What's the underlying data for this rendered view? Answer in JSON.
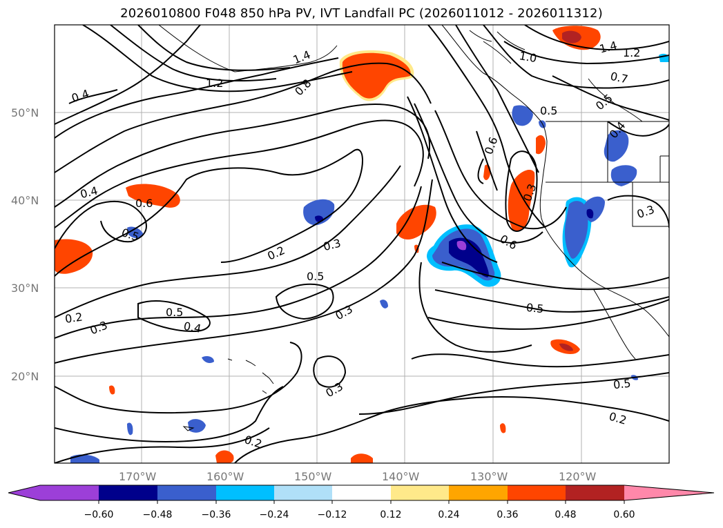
{
  "title": "2026010800 F048 850 hPa PV, IVT Landfall PC (2026011012 - 2026011312)",
  "lat_labels": [
    "50°N",
    "40°N",
    "30°N",
    "20°N"
  ],
  "lon_labels": [
    "170°W",
    "160°W",
    "150°W",
    "140°W",
    "130°W",
    "120°W"
  ],
  "contour_labels": [
    "0.4",
    "1.4",
    "1.2",
    "0.8",
    "1.0",
    "1.4",
    "1.2",
    "0.7",
    "0.5",
    "0.5",
    "0.6",
    "0.4",
    "0.4",
    "0.6",
    "0.5",
    "0.3",
    "0.3",
    "0.2",
    "0.3",
    "0.5",
    "0.6",
    "0.2",
    "0.5",
    "0.3",
    "0.5",
    "0.4",
    "0.3",
    "0.5",
    "0.3",
    "0.2",
    "0.2"
  ],
  "colorbar": {
    "ticks": [
      "−0.60",
      "−0.48",
      "−0.36",
      "−0.24",
      "−0.12",
      "0.12",
      "0.24",
      "0.36",
      "0.48",
      "0.60"
    ],
    "colors": [
      "#9c3fd8",
      "#00008b",
      "#3a5fcd",
      "#00bfff",
      "#b0e0f8",
      "#ffffff",
      "#ffe98a",
      "#ffa500",
      "#ff4500",
      "#b22222",
      "#ff88aa"
    ]
  }
}
